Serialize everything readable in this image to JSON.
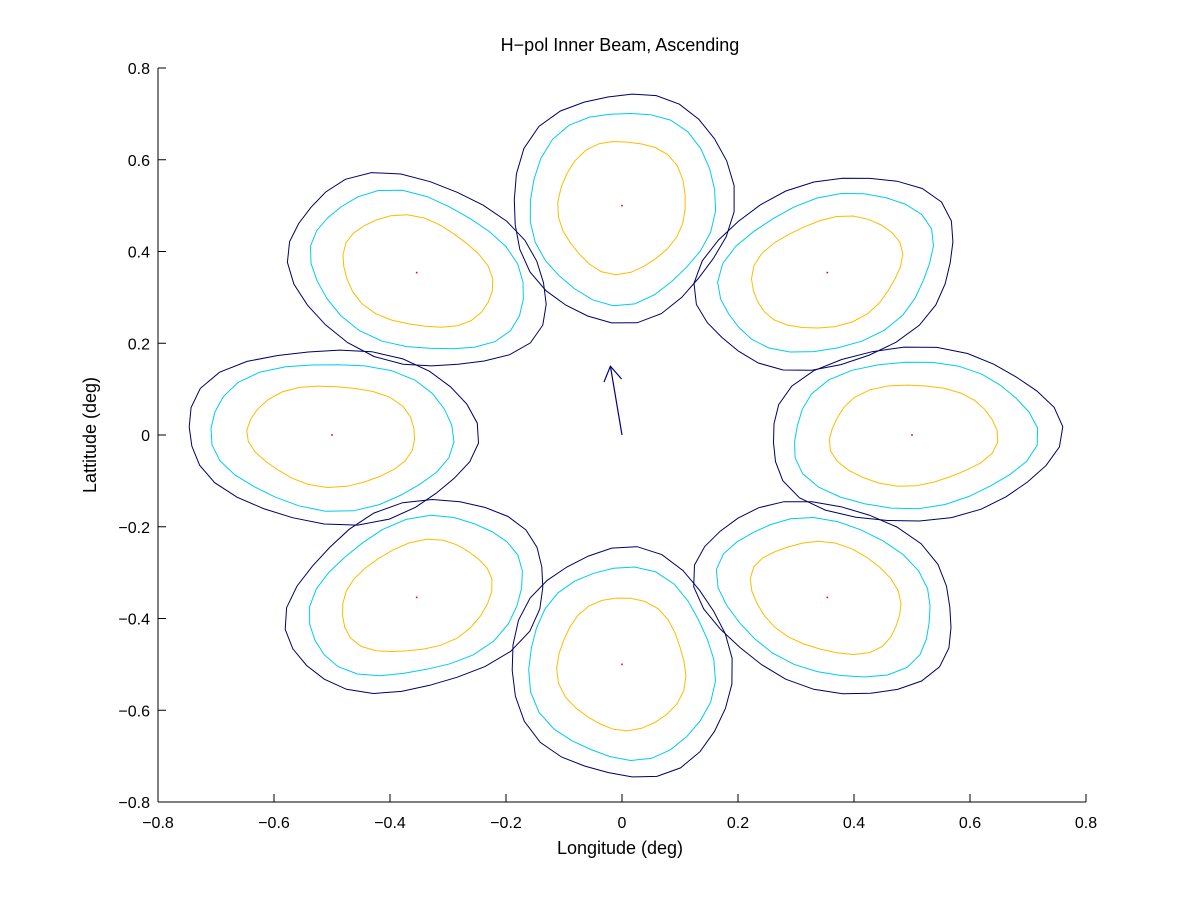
{
  "chart_data": {
    "type": "contour",
    "title": "H−pol Inner Beam, Ascending",
    "xlabel": "Longitude (deg)",
    "ylabel": "Lattitude (deg)",
    "xlim": [
      -0.8,
      0.8
    ],
    "ylim": [
      -0.8,
      0.8
    ],
    "xticks": [
      -0.8,
      -0.6,
      -0.4,
      -0.2,
      0,
      0.2,
      0.4,
      0.6,
      0.8
    ],
    "yticks": [
      -0.8,
      -0.6,
      -0.4,
      -0.2,
      0,
      0.2,
      0.4,
      0.6,
      0.8
    ],
    "xtick_labels": [
      "−0.8",
      "−0.6",
      "−0.4",
      "−0.2",
      "0",
      "0.2",
      "0.4",
      "0.6",
      "0.8"
    ],
    "ytick_labels": [
      "−0.8",
      "−0.6",
      "−0.4",
      "−0.2",
      "0",
      "0.2",
      "0.4",
      "0.6",
      "0.8"
    ],
    "grid": false,
    "legend": "none",
    "contour_colors": {
      "outer": "#000066",
      "middle": "#00ccee",
      "inner": "#ffbb00"
    },
    "center_marker_color": "#ff0000",
    "arrow_color": "#000080",
    "arrow": {
      "from": [
        0,
        0
      ],
      "to": [
        -0.02,
        0.15
      ]
    },
    "beams": [
      {
        "center": [
          0,
          0.5
        ],
        "tilt": -4,
        "outer": {
          "halfwidth": 0.19,
          "halfheight": 0.25
        },
        "middle": {
          "halfwidth": 0.16,
          "halfheight": 0.21
        },
        "inner": {
          "halfwidth": 0.11,
          "halfheight": 0.145
        }
      },
      {
        "center": [
          0.354,
          0.354
        ],
        "tilt": 38,
        "outer": {
          "halfwidth": 0.24,
          "halfheight": 0.19
        },
        "middle": {
          "halfwidth": 0.2,
          "halfheight": 0.155
        },
        "inner": {
          "halfwidth": 0.14,
          "halfheight": 0.11
        }
      },
      {
        "center": [
          0.5,
          0
        ],
        "tilt": 4,
        "outer": {
          "halfwidth": 0.25,
          "halfheight": 0.19
        },
        "middle": {
          "halfwidth": 0.21,
          "halfheight": 0.16
        },
        "inner": {
          "halfwidth": 0.145,
          "halfheight": 0.11
        }
      },
      {
        "center": [
          0.354,
          -0.354
        ],
        "tilt": -38,
        "outer": {
          "halfwidth": 0.24,
          "halfheight": 0.19
        },
        "middle": {
          "halfwidth": 0.2,
          "halfheight": 0.155
        },
        "inner": {
          "halfwidth": 0.14,
          "halfheight": 0.11
        }
      },
      {
        "center": [
          0,
          -0.5
        ],
        "tilt": 4,
        "outer": {
          "halfwidth": 0.19,
          "halfheight": 0.25
        },
        "middle": {
          "halfwidth": 0.16,
          "halfheight": 0.21
        },
        "inner": {
          "halfwidth": 0.11,
          "halfheight": 0.145
        }
      },
      {
        "center": [
          -0.354,
          -0.354
        ],
        "tilt": 38,
        "outer": {
          "halfwidth": 0.24,
          "halfheight": 0.19
        },
        "middle": {
          "halfwidth": 0.2,
          "halfheight": 0.155
        },
        "inner": {
          "halfwidth": 0.14,
          "halfheight": 0.11
        }
      },
      {
        "center": [
          -0.5,
          0
        ],
        "tilt": -4,
        "outer": {
          "halfwidth": 0.25,
          "halfheight": 0.19
        },
        "middle": {
          "halfwidth": 0.21,
          "halfheight": 0.16
        },
        "inner": {
          "halfwidth": 0.145,
          "halfheight": 0.11
        }
      },
      {
        "center": [
          -0.354,
          0.354
        ],
        "tilt": -38,
        "outer": {
          "halfwidth": 0.24,
          "halfheight": 0.19
        },
        "middle": {
          "halfwidth": 0.2,
          "halfheight": 0.155
        },
        "inner": {
          "halfwidth": 0.14,
          "halfheight": 0.11
        }
      }
    ]
  }
}
